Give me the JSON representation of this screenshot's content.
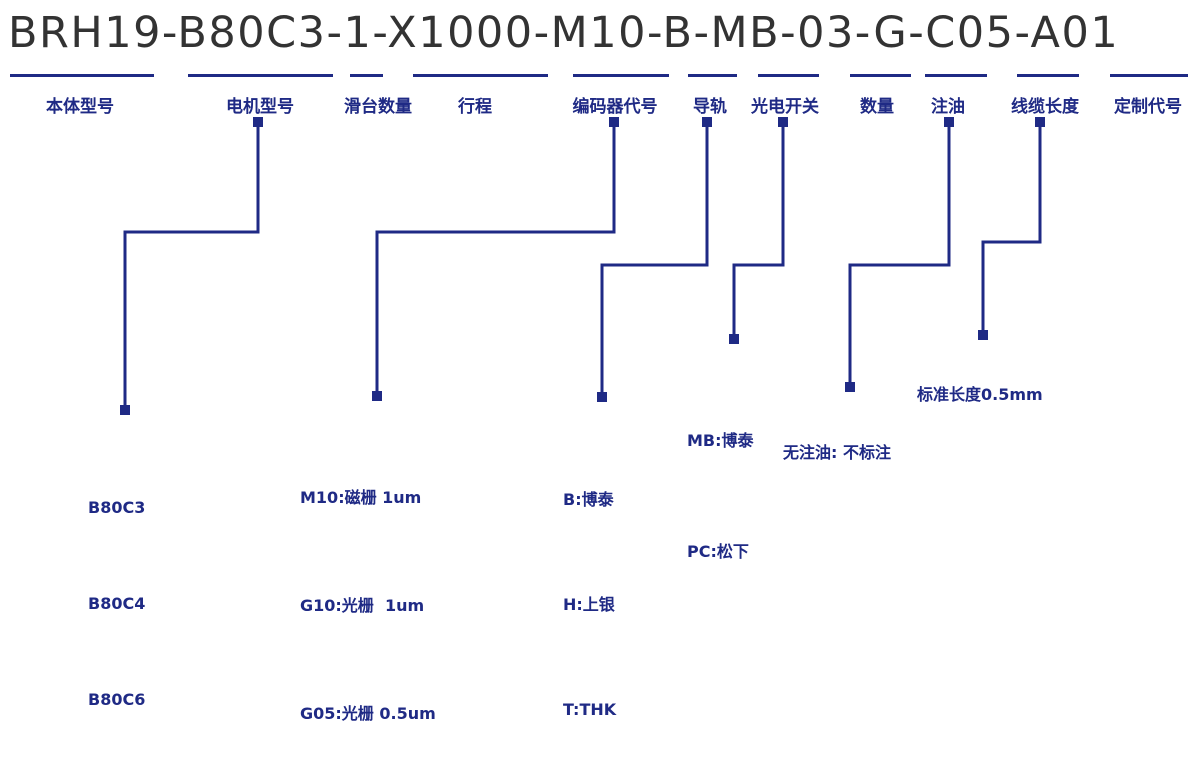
{
  "model_code": "BRH19-B80C3-1-X1000-M10-B-MB-03-G-C05-A01",
  "accent_color": "#1f2a85",
  "fields": [
    {
      "label": "本体型号"
    },
    {
      "label": "电机型号"
    },
    {
      "label": "滑台数量"
    },
    {
      "label": "行程"
    },
    {
      "label": "编码器代号"
    },
    {
      "label": "导轨"
    },
    {
      "label": "光电开关"
    },
    {
      "label": "数量"
    },
    {
      "label": "注油"
    },
    {
      "label": "线缆长度"
    },
    {
      "label": "定制代号"
    }
  ],
  "options": {
    "motor": [
      "B80C3",
      "B80C4",
      "B80C6"
    ],
    "encoder": [
      "M10:磁栅 1um",
      "G10:光栅  1um",
      "G05:光栅 0.5um"
    ],
    "rail": [
      "B:博泰",
      "H:上银",
      "T:THK"
    ],
    "photo_switch": [
      "MB:博泰",
      "PC:松下"
    ],
    "oil": [
      "无注油: 不标注"
    ],
    "cable": [
      "标准长度0.5mm"
    ]
  }
}
